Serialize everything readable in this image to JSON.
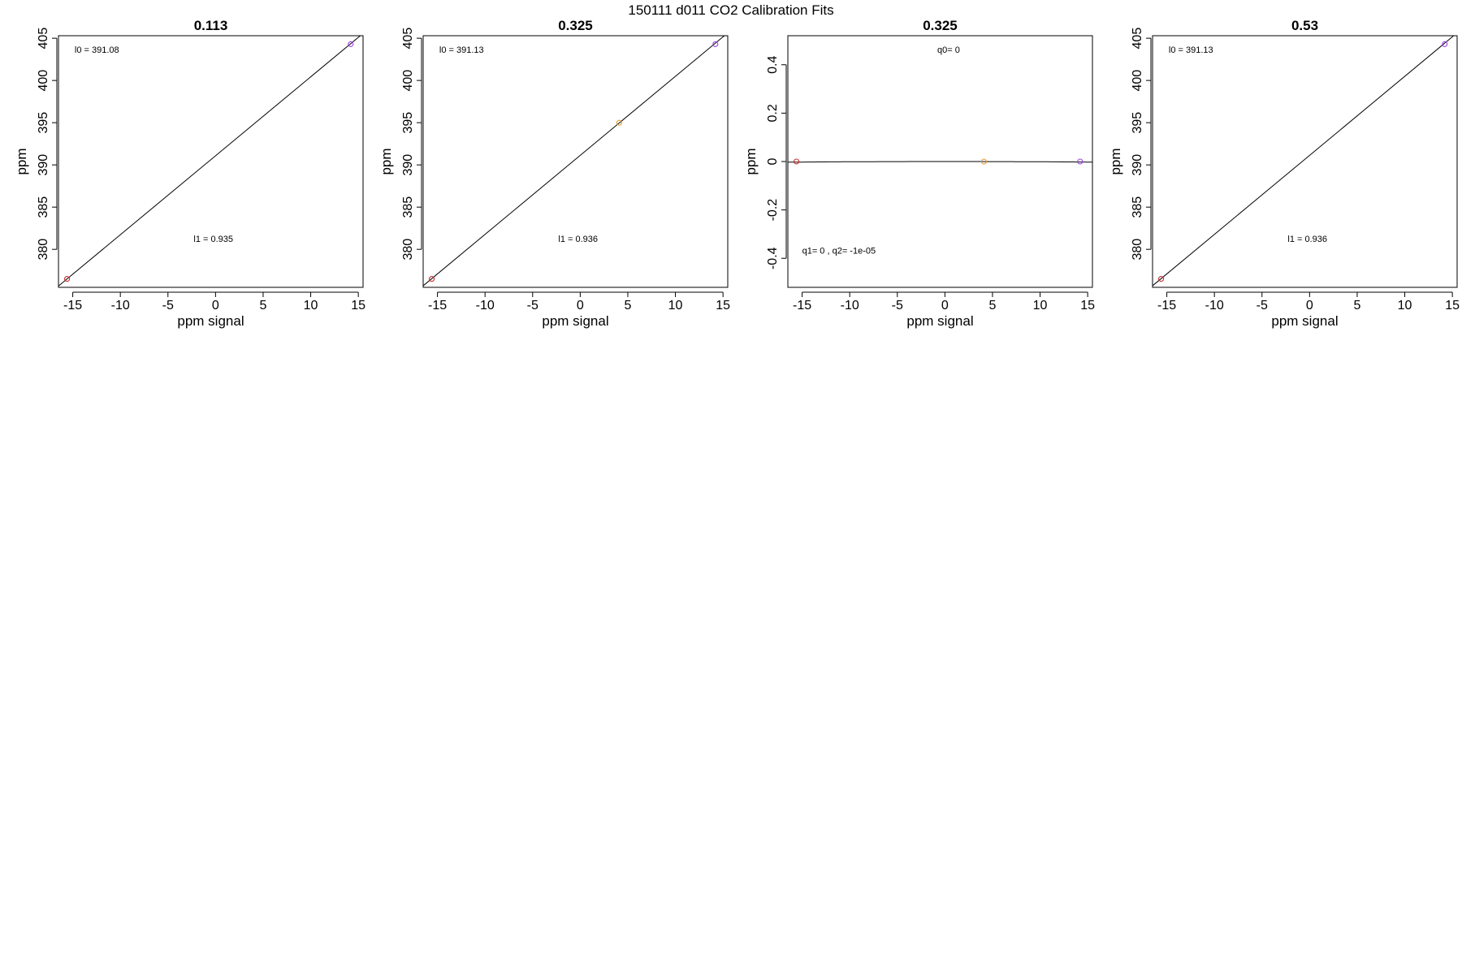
{
  "figure": {
    "title": "150111   d011   CO2 Calibration Fits"
  },
  "chart_data": [
    {
      "type": "scatter",
      "title": "0.113",
      "xlabel": "ppm signal",
      "ylabel": "ppm",
      "xlim": [
        -16.5,
        15.5
      ],
      "ylim": [
        375.5,
        405.3
      ],
      "xticks": [
        -15,
        -10,
        -5,
        0,
        5,
        10,
        15
      ],
      "yticks": [
        380,
        385,
        390,
        395,
        400,
        405
      ],
      "grid": false,
      "fit_line": {
        "intercept": 391.08,
        "slope": 0.935
      },
      "points": [
        {
          "x": -15.6,
          "y": 376.5,
          "color": "#cc2a2a"
        },
        {
          "x": 14.2,
          "y": 404.3,
          "color": "#9a3fe0"
        }
      ],
      "annotations": [
        {
          "text": "l0 =  391.08",
          "x": -14.8,
          "y": 403.3
        },
        {
          "text": "l1 =  0.935",
          "x": -2.3,
          "y": 380.9
        }
      ]
    },
    {
      "type": "scatter",
      "title": "0.325",
      "xlabel": "ppm signal",
      "ylabel": "ppm",
      "xlim": [
        -16.5,
        15.5
      ],
      "ylim": [
        375.5,
        405.3
      ],
      "xticks": [
        -15,
        -10,
        -5,
        0,
        5,
        10,
        15
      ],
      "yticks": [
        380,
        385,
        390,
        395,
        400,
        405
      ],
      "grid": false,
      "fit_line": {
        "intercept": 391.13,
        "slope": 0.936
      },
      "points": [
        {
          "x": -15.6,
          "y": 376.5,
          "color": "#cc2a2a"
        },
        {
          "x": 4.1,
          "y": 395.0,
          "color": "#e39a2c"
        },
        {
          "x": 14.2,
          "y": 404.3,
          "color": "#9a3fe0"
        }
      ],
      "annotations": [
        {
          "text": "l0 =  391.13",
          "x": -14.8,
          "y": 403.3
        },
        {
          "text": "l1 =  0.936",
          "x": -2.3,
          "y": 380.9
        }
      ]
    },
    {
      "type": "scatter",
      "title": "0.325",
      "xlabel": "ppm signal",
      "ylabel": "ppm",
      "xlim": [
        -16.5,
        15.5
      ],
      "ylim": [
        -0.52,
        0.52
      ],
      "xticks": [
        -15,
        -10,
        -5,
        0,
        5,
        10,
        15
      ],
      "yticks": [
        -0.4,
        -0.2,
        0.0,
        0.2,
        0.4
      ],
      "grid": false,
      "fit_curve": {
        "q0": 0,
        "q1": 0,
        "q2": -1e-05
      },
      "points": [
        {
          "x": -15.6,
          "y": 0.0,
          "color": "#cc2a2a"
        },
        {
          "x": 4.1,
          "y": 0.0,
          "color": "#e39a2c"
        },
        {
          "x": 14.2,
          "y": 0.0,
          "color": "#9a3fe0"
        }
      ],
      "annotations": [
        {
          "text": "q0= 0",
          "x": -0.8,
          "y": 0.45
        },
        {
          "text": "q1= 0 ,  q2= -1e-05",
          "x": -15.0,
          "y": -0.38
        }
      ]
    },
    {
      "type": "scatter",
      "title": "0.53",
      "xlabel": "ppm signal",
      "ylabel": "ppm",
      "xlim": [
        -16.5,
        15.5
      ],
      "ylim": [
        375.5,
        405.3
      ],
      "xticks": [
        -15,
        -10,
        -5,
        0,
        5,
        10,
        15
      ],
      "yticks": [
        380,
        385,
        390,
        395,
        400,
        405
      ],
      "grid": false,
      "fit_line": {
        "intercept": 391.13,
        "slope": 0.936
      },
      "points": [
        {
          "x": -15.6,
          "y": 376.5,
          "color": "#cc2a2a"
        },
        {
          "x": 14.2,
          "y": 404.3,
          "color": "#9a3fe0"
        }
      ],
      "annotations": [
        {
          "text": "l0 =  391.13",
          "x": -14.8,
          "y": 403.3
        },
        {
          "text": "l1 =  0.936",
          "x": -2.3,
          "y": 380.9
        }
      ]
    }
  ]
}
